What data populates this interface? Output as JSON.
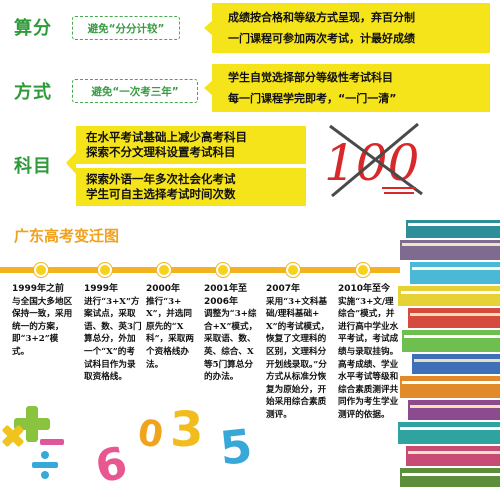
{
  "sections": {
    "suanfen": {
      "heading": "算分",
      "note": "避免“分分计较”",
      "lines": [
        "成绩按合格和等级方式呈现，弃百分制",
        "一门课程可参加两次考试，计最好成绩"
      ]
    },
    "fangshi": {
      "heading": "方式",
      "note": "避免“一次考三年”",
      "lines": [
        "学生自觉选择部分等级性考试科目",
        "每一门课程学完即考，“一门一清”"
      ]
    },
    "kemu": {
      "heading": "科目",
      "block1": [
        "在水平考试基础上减少高考科目",
        "探索不分文理科设置考试科目"
      ],
      "block2": [
        "探索外语一年多次社会化考试",
        "学生可自主选择考试时间次数"
      ],
      "crossed_number": "100"
    }
  },
  "timeline": {
    "title": "广东高考变迁图",
    "items": [
      {
        "year": "1999年之前",
        "text": "与全国大多地区保持一致，采用统一的方案，即“3+2”模式。"
      },
      {
        "year": "1999年",
        "text": "进行“3+X”方案试点，采取语、数、英3门算总分，外加一个“X”的考试科目作为录取资格线。"
      },
      {
        "year": "2000年",
        "text": "推行“3+X”，并选同原先的“X科”，采取两个资格线办法。"
      },
      {
        "year": "2001年至2006年",
        "text": "调整为“3+综合+X”模式，采取语、数、英、综合、X等5门算总分的办法。"
      },
      {
        "year": "2007年",
        "text": "采用“3+文科基础/理科基础+X”的考试模式，恢复了文理科的区别，文理科分开划线录取。”分方式从标准分恢复为原始分，开始采用综合素质测评。"
      },
      {
        "year": "2010年至今",
        "text": "实施“3+文/理综合”模式，并进行高中学业水平考试，考试成绩与录取挂钩。高考成绩、学业水平考试等级和综合素质测评共同作为考生学业测评的依据。"
      }
    ]
  },
  "decor_numbers": [
    "6",
    "0",
    "3",
    "5"
  ],
  "colors": {
    "green": "#2f9a3a",
    "yellow": "#f6e41b",
    "orange": "#f3b21f",
    "red": "#d8282a"
  }
}
